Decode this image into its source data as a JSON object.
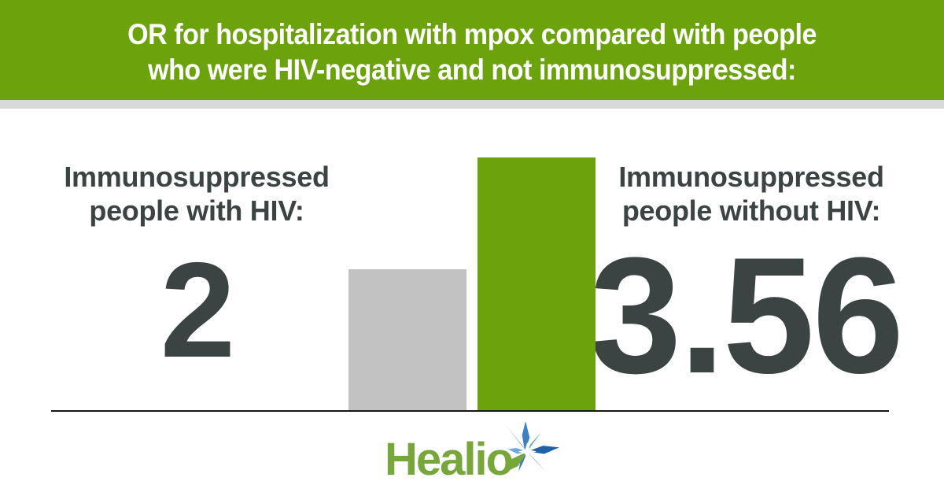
{
  "header": {
    "title_line1": "OR for hospitalization with mpox compared with people",
    "title_line2": "who were HIV-negative and not immunosuppressed:"
  },
  "groups": [
    {
      "label_line1": "Immunosuppressed",
      "label_line2": "people with HIV:",
      "value": "2"
    },
    {
      "label_line1": "Immunosuppressed",
      "label_line2": "people without HIV:",
      "value": "3.56"
    }
  ],
  "chart_data": {
    "type": "bar",
    "title": "OR for hospitalization with mpox compared with people who were HIV-negative and not immunosuppressed:",
    "categories": [
      "Immunosuppressed people with HIV",
      "Immunosuppressed people without HIV"
    ],
    "values": [
      2,
      3.56
    ],
    "value_labels": [
      "2",
      "3.56"
    ],
    "ylim": [
      0,
      3.56
    ],
    "bar_colors": [
      "#c2c2c2",
      "#6ca30d"
    ],
    "grid": false,
    "legend": false,
    "xlabel": "",
    "ylabel": "OR for hospitalization"
  },
  "footer": {
    "logo_text": "Healio"
  },
  "colors": {
    "green": "#6ca30d",
    "strip": "#d9d9d9",
    "dark": "#3c4343",
    "baseline": "#161616",
    "header-text": "#ffffff",
    "logo-green": "#77a73b",
    "logo-blue-dark": "#1f62a7",
    "logo-blue-mid": "#3d7fc1",
    "logo-blue-light": "#6fa8d9"
  }
}
